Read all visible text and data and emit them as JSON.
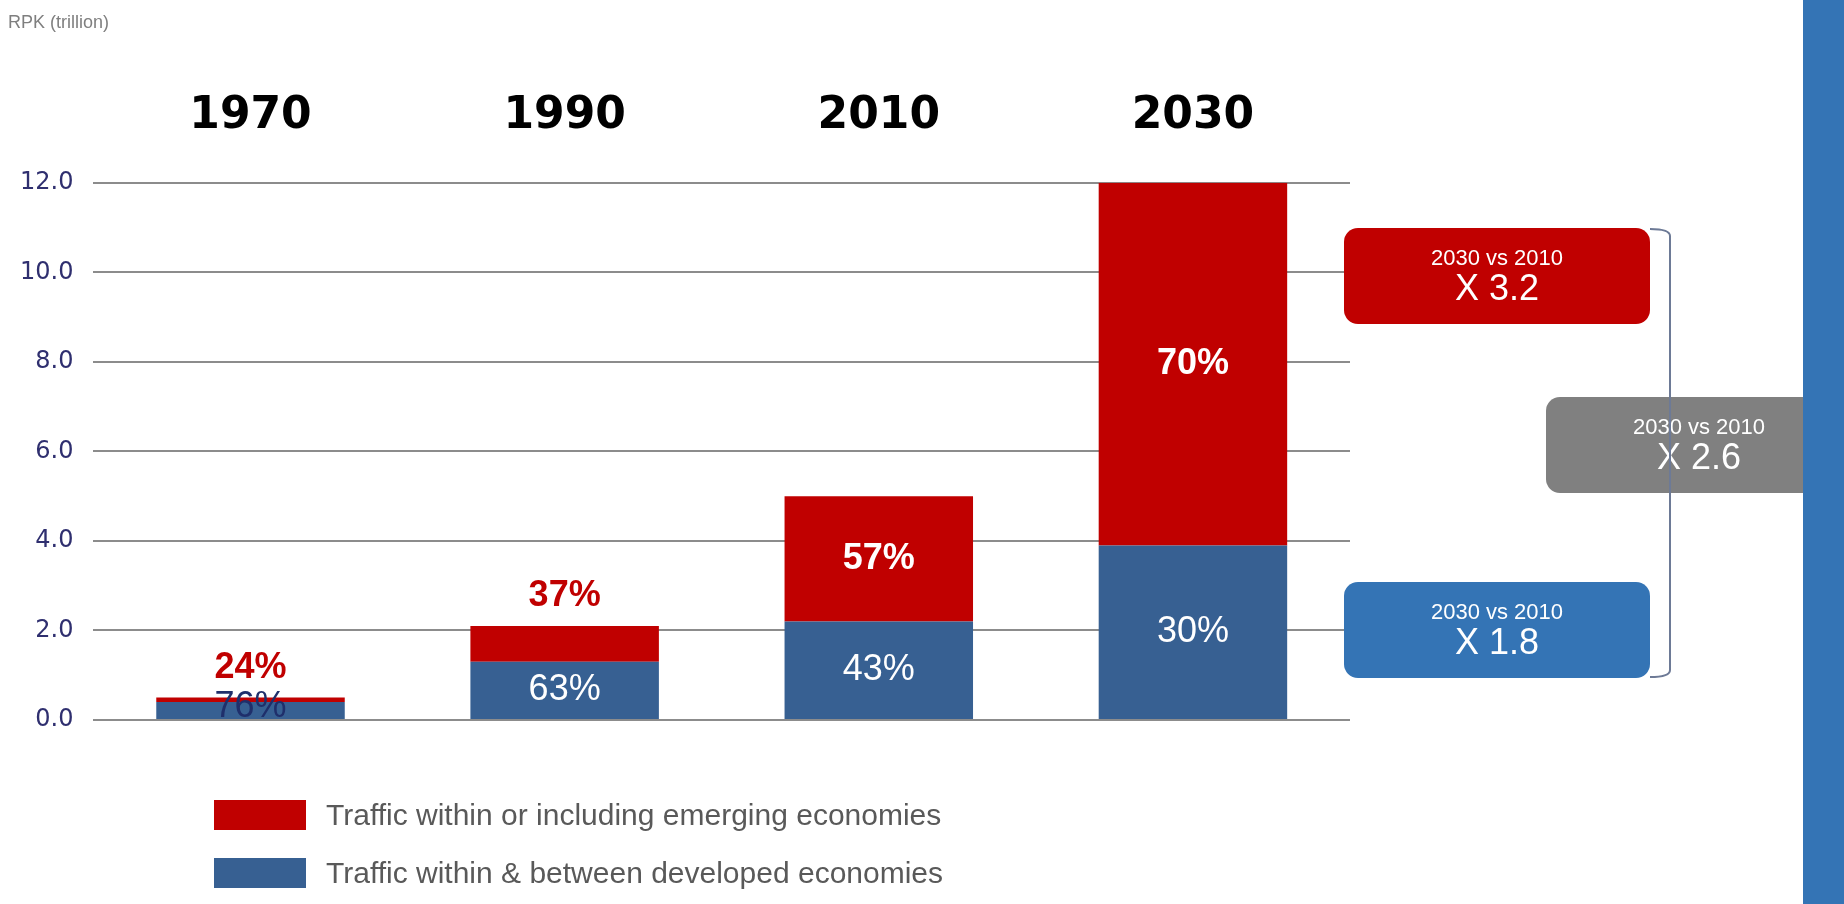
{
  "chart_data": {
    "type": "bar",
    "stacked": true,
    "ylabel": "RPK (trillion)",
    "categories": [
      "1970",
      "1990",
      "2010",
      "2030"
    ],
    "series": [
      {
        "name": "Traffic within & between developed economies",
        "color": "#376092",
        "values": [
          0.4,
          1.3,
          2.2,
          3.9
        ]
      },
      {
        "name": "Traffic within or including emerging economies",
        "color": "#c00000",
        "values": [
          0.1,
          0.8,
          2.8,
          8.1
        ]
      }
    ],
    "ylim": [
      0,
      12
    ],
    "yticks": [
      {
        "value": 0,
        "label": "0.0"
      },
      {
        "value": 2,
        "label": "2.0"
      },
      {
        "value": 4,
        "label": "4.0"
      },
      {
        "value": 6,
        "label": "6.0"
      },
      {
        "value": 8,
        "label": "8.0"
      },
      {
        "value": 10,
        "label": "10.0"
      },
      {
        "value": 12,
        "label": "12.0"
      }
    ],
    "grid": "y",
    "legend": "bottom",
    "annotations": [
      "76%",
      "24%",
      "63%",
      "37%",
      "43%",
      "57%",
      "30%",
      "70%",
      "2030 vs 2010\nX 3.2",
      "2030 vs 2010\nX 2.6",
      "2030 vs 2010\nX 1.8"
    ]
  }
}
